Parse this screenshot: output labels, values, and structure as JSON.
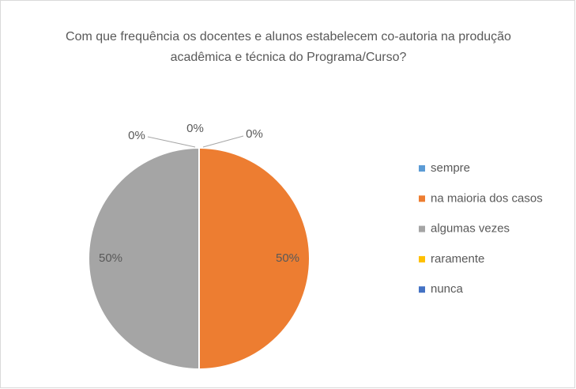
{
  "chart_data": {
    "type": "pie",
    "title": "Com que frequência os docentes e alunos estabelecem co-autoria na produção acadêmica e técnica do Programa/Curso?",
    "categories": [
      "sempre",
      "na maioria dos casos",
      "algumas vezes",
      "raramente",
      "nunca"
    ],
    "values": [
      0,
      50,
      50,
      0,
      0
    ],
    "value_labels": [
      "0%",
      "50%",
      "50%",
      "0%",
      "0%"
    ],
    "colors": [
      "#5b9bd5",
      "#ed7d31",
      "#a5a5a5",
      "#ffc000",
      "#4472c4"
    ],
    "legend": "right"
  }
}
